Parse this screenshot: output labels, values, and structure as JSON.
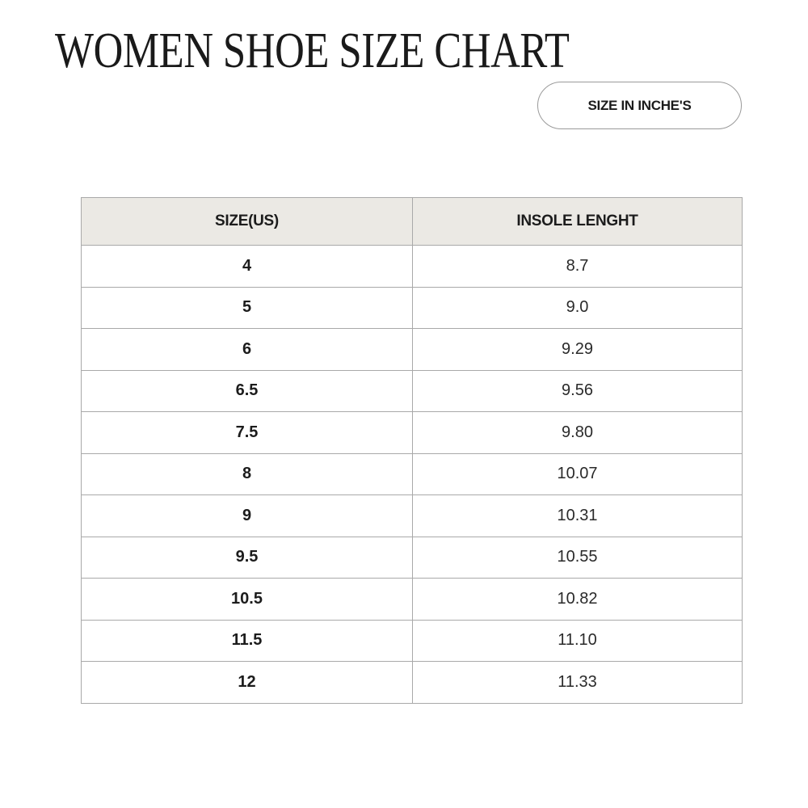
{
  "title": "WOMEN SHOE SIZE CHART",
  "unit_button": "SIZE IN INCHE'S",
  "colors": {
    "header_bg": "#ebe9e4",
    "border": "#a9a9a9",
    "text": "#1c1c1c"
  },
  "table": {
    "headers": [
      "SIZE(US)",
      "INSOLE LENGHT"
    ],
    "rows": [
      [
        "4",
        "8.7"
      ],
      [
        "5",
        "9.0"
      ],
      [
        "6",
        "9.29"
      ],
      [
        "6.5",
        "9.56"
      ],
      [
        "7.5",
        "9.80"
      ],
      [
        "8",
        "10.07"
      ],
      [
        "9",
        "10.31"
      ],
      [
        "9.5",
        "10.55"
      ],
      [
        "10.5",
        "10.82"
      ],
      [
        "11.5",
        "11.10"
      ],
      [
        "12",
        "11.33"
      ]
    ]
  }
}
